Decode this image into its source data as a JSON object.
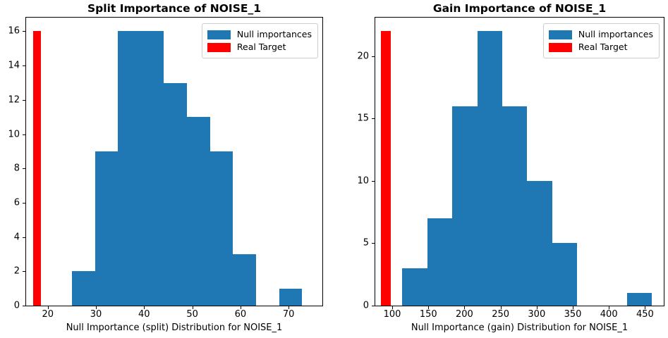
{
  "figure": {
    "background": "#ffffff"
  },
  "colors": {
    "null_importances": "#1f77b4",
    "real_target": "#ff0000",
    "axis": "#000000",
    "text": "#000000",
    "legend_border": "#cccccc"
  },
  "legend": {
    "items": [
      {
        "label": "Null importances",
        "color": "null_importances"
      },
      {
        "label": "Real Target",
        "color": "real_target"
      }
    ]
  },
  "chart_data": [
    {
      "type": "bar",
      "subtype": "histogram",
      "title": "Split Importance of NOISE_1",
      "xlabel": "Null Importance (split) Distribution for NOISE_1",
      "ylabel": "",
      "xlim": [
        15.5,
        77.0
      ],
      "ylim": [
        0,
        16.8
      ],
      "xticks": [
        20,
        30,
        40,
        50,
        60,
        70
      ],
      "yticks": [
        0,
        2,
        4,
        6,
        8,
        10,
        12,
        14,
        16
      ],
      "grid": false,
      "legend_position": "upper right",
      "series": [
        {
          "name": "Null importances",
          "kind": "histogram",
          "color": "null_importances",
          "bin_edges": [
            25.0,
            29.78,
            34.56,
            39.34,
            44.12,
            48.9,
            53.68,
            58.46,
            63.24,
            68.02,
            72.8
          ],
          "counts": [
            2,
            9,
            16,
            16,
            13,
            11,
            9,
            3,
            0,
            1
          ]
        },
        {
          "name": "Real Target",
          "kind": "bar",
          "color": "real_target",
          "x_start": 16.9,
          "x_end": 18.6,
          "height": 16
        }
      ]
    },
    {
      "type": "bar",
      "subtype": "histogram",
      "title": "Gain Importance of NOISE_1",
      "xlabel": "Null Importance (gain) Distribution for NOISE_1",
      "ylabel": "",
      "xlim": [
        76.5,
        476.0
      ],
      "ylim": [
        0,
        23.1
      ],
      "xticks": [
        100,
        150,
        200,
        250,
        300,
        350,
        400,
        450
      ],
      "yticks": [
        0,
        5,
        10,
        15,
        20
      ],
      "grid": false,
      "legend_position": "upper right",
      "series": [
        {
          "name": "Null importances",
          "kind": "histogram",
          "color": "null_importances",
          "bin_edges": [
            114.0,
            148.57,
            183.14,
            217.71,
            252.28,
            286.85,
            321.42,
            355.99,
            390.56,
            425.13,
            459.7
          ],
          "counts": [
            3,
            7,
            16,
            22,
            16,
            10,
            5,
            0,
            0,
            1
          ]
        },
        {
          "name": "Real Target",
          "kind": "bar",
          "color": "real_target",
          "x_start": 84.2,
          "x_end": 97.6,
          "height": 22
        }
      ]
    }
  ]
}
